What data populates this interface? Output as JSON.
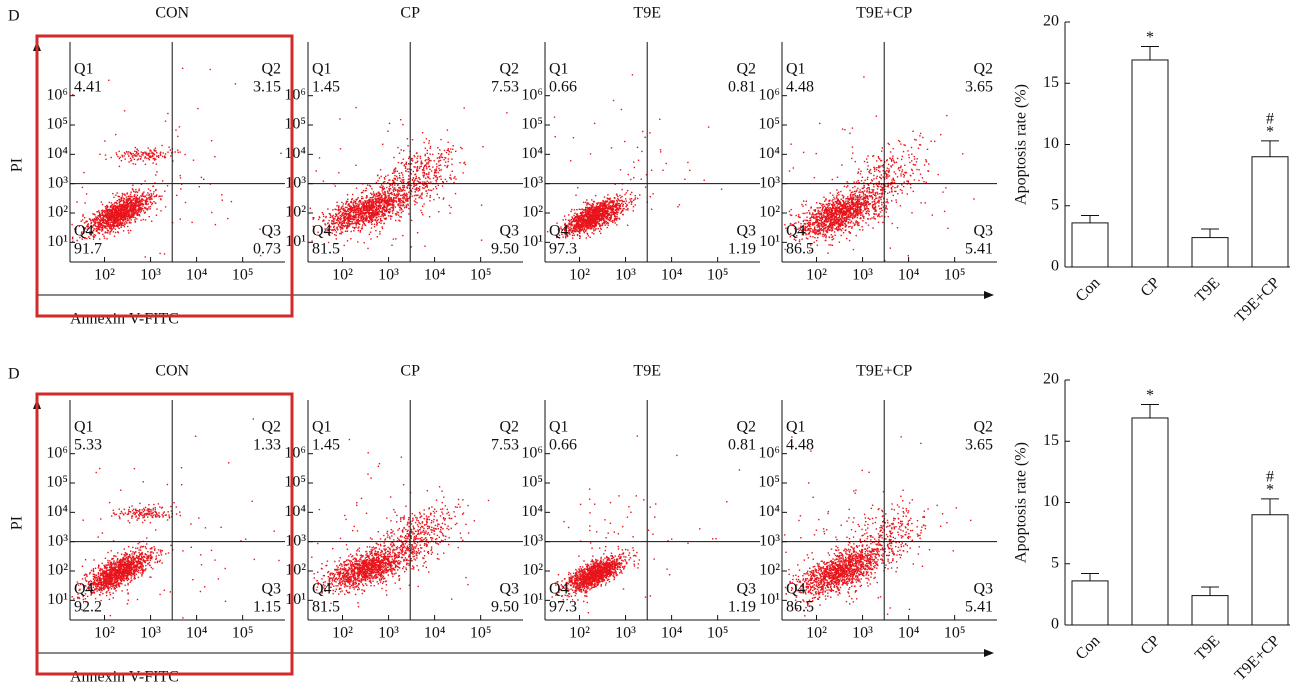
{
  "panels": [
    {
      "label": "D",
      "y_label": "PI",
      "x_label": "Annexin V-FITC",
      "flow": {
        "xlim": [
          1.25,
          5.92
        ],
        "ylim": [
          0.33,
          7.83
        ],
        "gate": [
          3.47,
          3.0
        ],
        "xticks": [
          {
            "value": 2,
            "label": "10²"
          },
          {
            "value": 3,
            "label": "10³"
          },
          {
            "value": 4,
            "label": "10⁴"
          },
          {
            "value": 5,
            "label": "10⁵"
          }
        ],
        "yticks": [
          {
            "value": 1,
            "label": "10¹"
          },
          {
            "value": 2,
            "label": "10²"
          },
          {
            "value": 3,
            "label": "10³"
          },
          {
            "value": 4,
            "label": "10⁴"
          },
          {
            "value": 5,
            "label": "10⁵"
          },
          {
            "value": 6,
            "label": "10⁶"
          }
        ],
        "plots": [
          {
            "title": "CON",
            "quadrants": [
              {
                "name": "Q1",
                "value": "4.41"
              },
              {
                "name": "Q2",
                "value": "3.15"
              },
              {
                "name": "Q3",
                "value": "0.73"
              },
              {
                "name": "Q4",
                "value": "91.7"
              }
            ]
          },
          {
            "title": "CP",
            "quadrants": [
              {
                "name": "Q1",
                "value": "1.45"
              },
              {
                "name": "Q2",
                "value": "7.53"
              },
              {
                "name": "Q3",
                "value": "9.50"
              },
              {
                "name": "Q4",
                "value": "81.5"
              }
            ]
          },
          {
            "title": "T9E",
            "quadrants": [
              {
                "name": "Q1",
                "value": "0.66"
              },
              {
                "name": "Q2",
                "value": "0.81"
              },
              {
                "name": "Q3",
                "value": "1.19"
              },
              {
                "name": "Q4",
                "value": "97.3"
              }
            ]
          },
          {
            "title": "T9E+CP",
            "quadrants": [
              {
                "name": "Q1",
                "value": "4.48"
              },
              {
                "name": "Q2",
                "value": "3.65"
              },
              {
                "name": "Q3",
                "value": "5.41"
              },
              {
                "name": "Q4",
                "value": "86.5"
              }
            ]
          }
        ]
      },
      "chart": {
        "type": "bar",
        "y_label": "Apoptosis rate (%)",
        "categories": [
          "Con",
          "CP",
          "T9E",
          "T9E+CP"
        ],
        "values": [
          3.6,
          16.9,
          2.4,
          9.0
        ],
        "errors": [
          0.6,
          1.1,
          0.7,
          1.3
        ],
        "annotations": [
          null,
          [
            "*"
          ],
          null,
          [
            "#",
            "*"
          ]
        ],
        "ylim": [
          0,
          20
        ],
        "yticks": [
          0,
          5,
          10,
          15,
          20
        ],
        "color": "#ffffff"
      }
    },
    {
      "label": "D",
      "y_label": "PI",
      "x_label": "Annexin V-FITC",
      "flow": {
        "xlim": [
          1.25,
          5.92
        ],
        "ylim": [
          0.33,
          7.83
        ],
        "gate": [
          3.47,
          3.0
        ],
        "xticks": [
          {
            "value": 2,
            "label": "10²"
          },
          {
            "value": 3,
            "label": "10³"
          },
          {
            "value": 4,
            "label": "10⁴"
          },
          {
            "value": 5,
            "label": "10⁵"
          }
        ],
        "yticks": [
          {
            "value": 1,
            "label": "10¹"
          },
          {
            "value": 2,
            "label": "10²"
          },
          {
            "value": 3,
            "label": "10³"
          },
          {
            "value": 4,
            "label": "10⁴"
          },
          {
            "value": 5,
            "label": "10⁵"
          },
          {
            "value": 6,
            "label": "10⁶"
          }
        ],
        "plots": [
          {
            "title": "CON",
            "quadrants": [
              {
                "name": "Q1",
                "value": "5.33"
              },
              {
                "name": "Q2",
                "value": "1.33"
              },
              {
                "name": "Q3",
                "value": "1.15"
              },
              {
                "name": "Q4",
                "value": "92.2"
              }
            ]
          },
          {
            "title": "CP",
            "quadrants": [
              {
                "name": "Q1",
                "value": "1.45"
              },
              {
                "name": "Q2",
                "value": "7.53"
              },
              {
                "name": "Q3",
                "value": "9.50"
              },
              {
                "name": "Q4",
                "value": "81.5"
              }
            ]
          },
          {
            "title": "T9E",
            "quadrants": [
              {
                "name": "Q1",
                "value": "0.66"
              },
              {
                "name": "Q2",
                "value": "0.81"
              },
              {
                "name": "Q3",
                "value": "1.19"
              },
              {
                "name": "Q4",
                "value": "97.3"
              }
            ]
          },
          {
            "title": "T9E+CP",
            "quadrants": [
              {
                "name": "Q1",
                "value": "4.48"
              },
              {
                "name": "Q2",
                "value": "3.65"
              },
              {
                "name": "Q3",
                "value": "5.41"
              },
              {
                "name": "Q4",
                "value": "86.5"
              }
            ]
          }
        ]
      },
      "chart": {
        "type": "bar",
        "y_label": "Apoptosis rate (%)",
        "categories": [
          "Con",
          "CP",
          "T9E",
          "T9E+CP"
        ],
        "values": [
          3.6,
          16.9,
          2.4,
          9.0
        ],
        "errors": [
          0.6,
          1.1,
          0.7,
          1.3
        ],
        "annotations": [
          null,
          [
            "*"
          ],
          null,
          [
            "#",
            "*"
          ]
        ],
        "ylim": [
          0,
          20
        ],
        "yticks": [
          0,
          5,
          10,
          15,
          20
        ],
        "color": "#ffffff"
      }
    }
  ]
}
